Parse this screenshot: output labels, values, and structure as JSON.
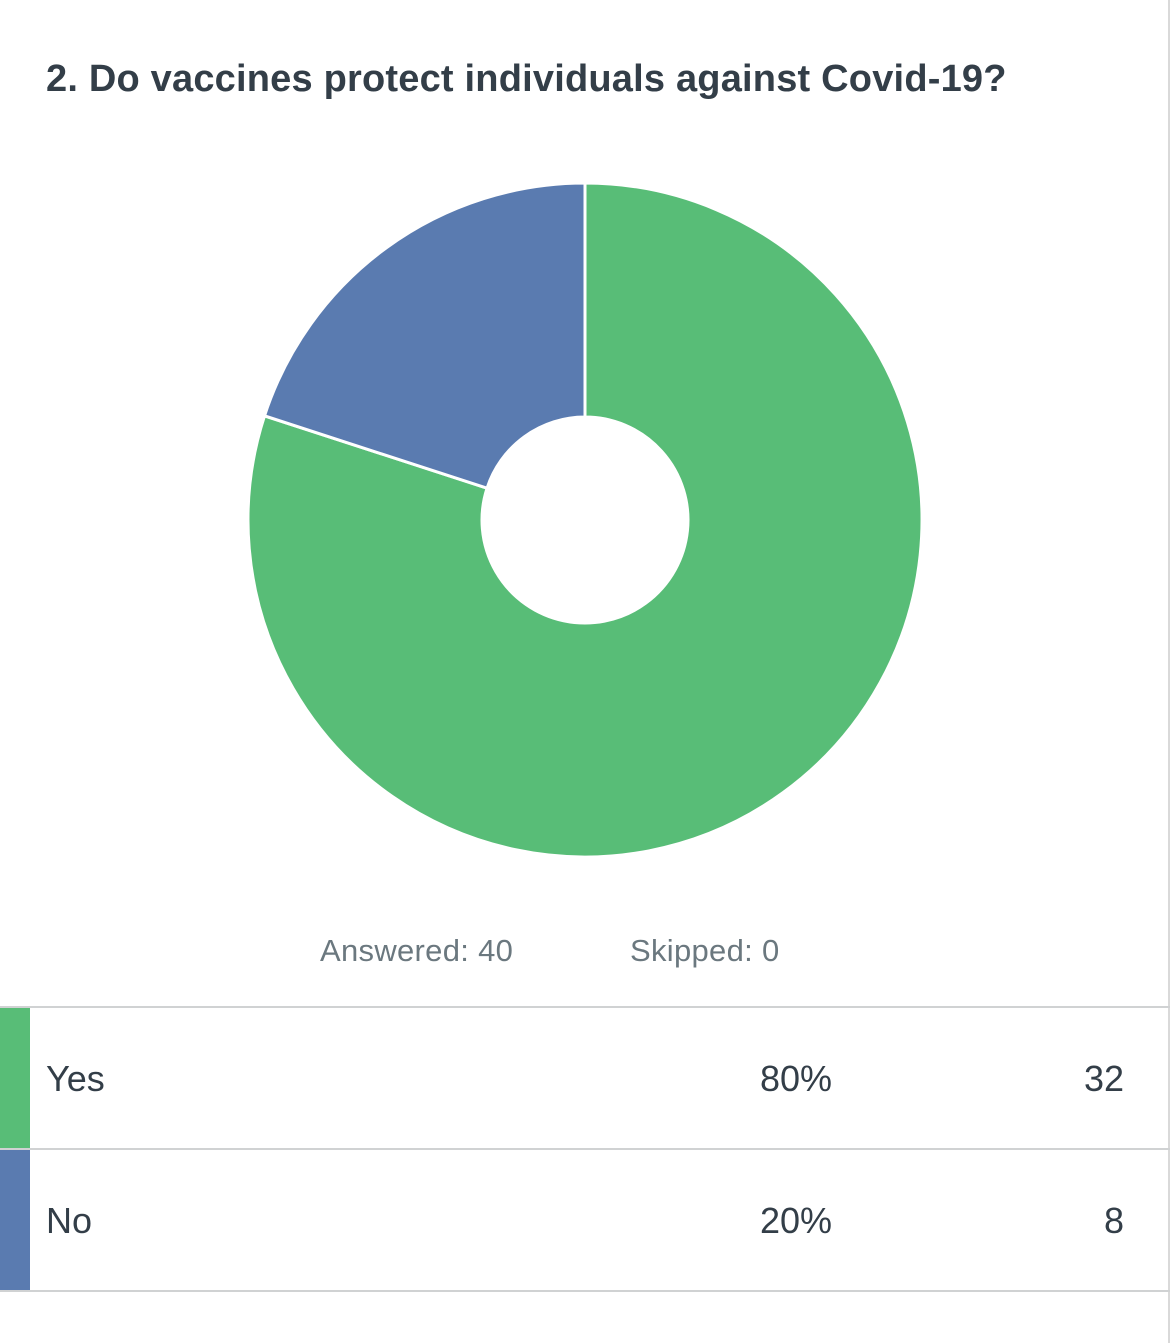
{
  "question": {
    "title": "2. Do vaccines protect individuals against Covid-19?"
  },
  "chart_data": {
    "type": "pie",
    "title": "2. Do vaccines protect individuals against Covid-19?",
    "categories": [
      "Yes",
      "No"
    ],
    "values": [
      80,
      20
    ],
    "counts": [
      32,
      8
    ],
    "colors": [
      "#58bd77",
      "#5a7bb0"
    ],
    "style": "donut"
  },
  "summary": {
    "answered": "Answered: 40",
    "skipped": "Skipped: 0"
  },
  "table": {
    "rows": [
      {
        "label": "Yes",
        "percent": "80%",
        "count": "32",
        "color": "#58bd77"
      },
      {
        "label": "No",
        "percent": "20%",
        "count": "8",
        "color": "#5a7bb0"
      }
    ]
  }
}
